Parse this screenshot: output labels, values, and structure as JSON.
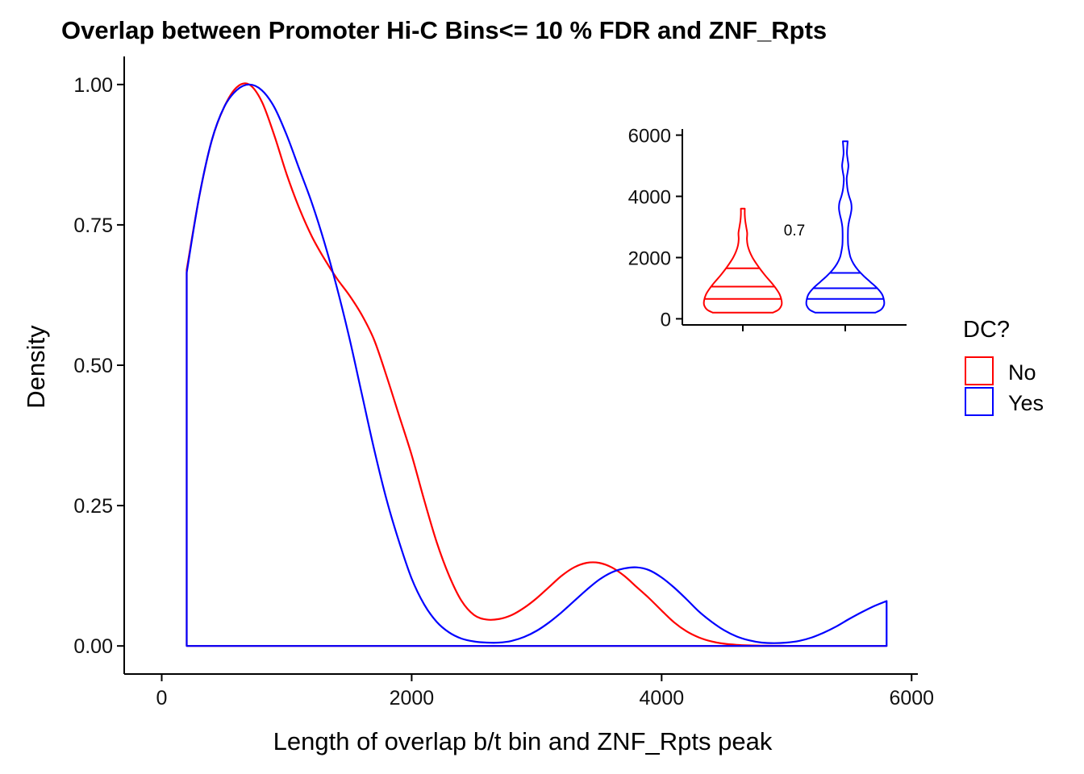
{
  "chart_data": [
    {
      "type": "area",
      "title": "Overlap between Promoter Hi-C Bins<= 10 % FDR and ZNF_Rpts",
      "xlabel": "Length of overlap b/t bin and ZNF_Rpts peak",
      "ylabel": "Density",
      "xlim": [
        -300,
        6050
      ],
      "ylim": [
        -0.05,
        1.05
      ],
      "xticks": [
        0,
        2000,
        4000,
        6000
      ],
      "xtick_labels": [
        "0",
        "2000",
        "4000",
        "6000"
      ],
      "yticks": [
        0,
        0.25,
        0.5,
        0.75,
        1.0
      ],
      "ytick_labels": [
        "0.00",
        "0.25",
        "0.50",
        "0.75",
        "1.00"
      ],
      "grid": false,
      "legend": {
        "title": "DC?",
        "placement": "right",
        "entries": [
          {
            "label": "No",
            "color": "#ff0000"
          },
          {
            "label": "Yes",
            "color": "#0000ff"
          }
        ]
      },
      "series": [
        {
          "name": "No",
          "color": "#ff0000",
          "x": [
            200,
            300,
            400,
            500,
            600,
            700,
            800,
            900,
            1000,
            1100,
            1200,
            1300,
            1400,
            1500,
            1600,
            1700,
            1800,
            1900,
            2000,
            2100,
            2200,
            2300,
            2400,
            2500,
            2600,
            2700,
            2800,
            2900,
            3000,
            3100,
            3200,
            3300,
            3400,
            3500,
            3600,
            3700,
            3800,
            3900,
            4000,
            4100,
            4200,
            4300,
            4400,
            4500,
            4600,
            4700,
            4800,
            4900,
            5000,
            5100,
            5200,
            5300,
            5400,
            5500,
            5600,
            5700,
            5800
          ],
          "y": [
            0.67,
            0.8,
            0.9,
            0.96,
            0.995,
            1.0,
            0.97,
            0.91,
            0.84,
            0.78,
            0.73,
            0.69,
            0.655,
            0.625,
            0.59,
            0.545,
            0.48,
            0.41,
            0.34,
            0.26,
            0.185,
            0.125,
            0.08,
            0.055,
            0.047,
            0.048,
            0.055,
            0.068,
            0.085,
            0.105,
            0.125,
            0.14,
            0.148,
            0.148,
            0.14,
            0.125,
            0.105,
            0.085,
            0.063,
            0.042,
            0.026,
            0.015,
            0.008,
            0.004,
            0.002,
            0.001,
            0.0005,
            0.0003,
            0.0002,
            0.0001,
            0.0,
            0.0,
            0.0,
            0.0,
            0.0,
            0.0,
            0.0
          ]
        },
        {
          "name": "Yes",
          "color": "#0000ff",
          "x": [
            200,
            300,
            400,
            500,
            600,
            700,
            800,
            900,
            1000,
            1100,
            1200,
            1300,
            1400,
            1500,
            1600,
            1700,
            1800,
            1900,
            2000,
            2100,
            2200,
            2300,
            2400,
            2500,
            2600,
            2700,
            2800,
            2900,
            3000,
            3100,
            3200,
            3300,
            3400,
            3500,
            3600,
            3700,
            3800,
            3900,
            4000,
            4100,
            4200,
            4300,
            4400,
            4500,
            4600,
            4700,
            4800,
            4900,
            5000,
            5100,
            5200,
            5300,
            5400,
            5500,
            5600,
            5700,
            5800
          ],
          "y": [
            0.665,
            0.8,
            0.9,
            0.96,
            0.99,
            1.0,
            0.99,
            0.96,
            0.91,
            0.85,
            0.79,
            0.72,
            0.64,
            0.55,
            0.45,
            0.35,
            0.26,
            0.185,
            0.12,
            0.074,
            0.043,
            0.024,
            0.013,
            0.008,
            0.006,
            0.006,
            0.009,
            0.016,
            0.027,
            0.042,
            0.06,
            0.08,
            0.1,
            0.118,
            0.131,
            0.138,
            0.14,
            0.135,
            0.122,
            0.104,
            0.083,
            0.061,
            0.043,
            0.028,
            0.017,
            0.01,
            0.006,
            0.005,
            0.006,
            0.009,
            0.015,
            0.024,
            0.035,
            0.048,
            0.06,
            0.071,
            0.08
          ]
        }
      ]
    },
    {
      "type": "violin",
      "ylim": [
        -200,
        6200
      ],
      "yticks": [
        0,
        2000,
        4000,
        6000
      ],
      "ytick_labels": [
        "0",
        "2000",
        "4000",
        "6000"
      ],
      "annotation": "0.7",
      "groups": [
        {
          "name": "No",
          "color": "#ff0000",
          "quantiles": [
            650,
            1050,
            1650
          ],
          "y": [
            200,
            300,
            450,
            600,
            800,
            1000,
            1200,
            1400,
            1600,
            1800,
            2000,
            2200,
            2400,
            2600,
            2800,
            3000,
            3200,
            3400,
            3600
          ],
          "halfwidth": [
            0.62,
            0.74,
            0.8,
            0.8,
            0.76,
            0.68,
            0.58,
            0.47,
            0.37,
            0.28,
            0.2,
            0.14,
            0.1,
            0.085,
            0.09,
            0.07,
            0.05,
            0.04,
            0.04
          ]
        },
        {
          "name": "Yes",
          "color": "#0000ff",
          "quantiles": [
            650,
            1000,
            1500
          ],
          "y": [
            200,
            300,
            450,
            600,
            800,
            1000,
            1200,
            1400,
            1600,
            1800,
            2000,
            2200,
            2400,
            2600,
            2800,
            3000,
            3200,
            3400,
            3600,
            3800,
            4000,
            4200,
            4400,
            4600,
            4800,
            5000,
            5200,
            5400,
            5600,
            5800
          ],
          "halfwidth": [
            0.62,
            0.74,
            0.8,
            0.8,
            0.76,
            0.66,
            0.52,
            0.38,
            0.26,
            0.17,
            0.11,
            0.08,
            0.06,
            0.055,
            0.055,
            0.06,
            0.08,
            0.11,
            0.13,
            0.12,
            0.08,
            0.05,
            0.035,
            0.03,
            0.05,
            0.065,
            0.05,
            0.035,
            0.04,
            0.05
          ]
        }
      ]
    }
  ]
}
